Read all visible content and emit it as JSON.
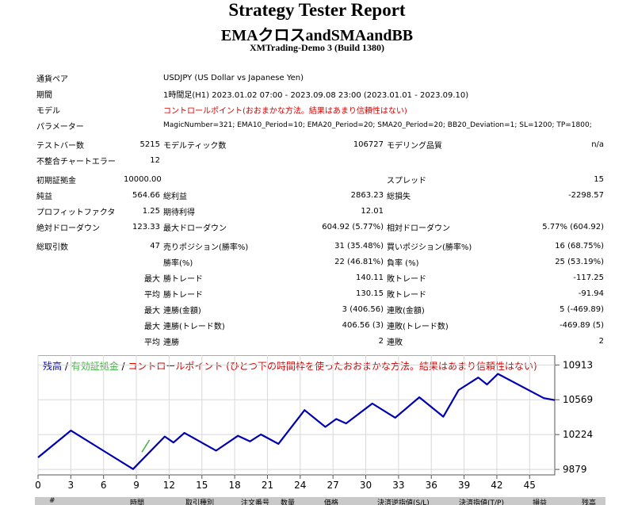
{
  "report": {
    "title": "Strategy Tester Report",
    "expert": "EMAクロスandSMAandBB",
    "server": "XMTrading-Demo 3 (Build 1380)"
  },
  "info": {
    "symbol_label": "通貨ペア",
    "symbol_value": "USDJPY (US Dollar vs Japanese Yen)",
    "period_label": "期間",
    "period_value": "1時間足(H1) 2023.01.02 07:00 - 2023.09.08 23:00 (2023.01.01 - 2023.09.10)",
    "model_label": "モデル",
    "model_value": "コントロールポイント(おおまかな方法。結果はあまり信頼性はない)",
    "params_label": "パラメーター",
    "params_value": "MagicNumber=321; EMA10_Period=10; EMA20_Period=20; SMA20_Period=20; BB20_Deviation=1; SL=1200; TP=1800;"
  },
  "stats": {
    "bars_label": "テストバー数",
    "bars_value": "5215",
    "ticks_label": "モデルティック数",
    "ticks_value": "106727",
    "quality_label": "モデリング品質",
    "quality_value": "n/a",
    "mismatch_label": "不整合チャートエラー",
    "mismatch_value": "12",
    "deposit_label": "初期証拠金",
    "deposit_value": "10000.00",
    "spread_label": "スプレッド",
    "spread_value": "15",
    "net_label": "純益",
    "net_value": "564.66",
    "gross_profit_label": "総利益",
    "gross_profit_value": "2863.23",
    "gross_loss_label": "総損失",
    "gross_loss_value": "-2298.57",
    "pf_label": "プロフィットファクタ",
    "pf_value": "1.25",
    "payoff_label": "期待利得",
    "payoff_value": "12.01",
    "abs_dd_label": "絶対ドローダウン",
    "abs_dd_value": "123.33",
    "max_dd_label": "最大ドローダウン",
    "max_dd_value": "604.92 (5.77%)",
    "rel_dd_label": "相対ドローダウン",
    "rel_dd_value": "5.77% (604.92)",
    "trades_label": "総取引数",
    "trades_value": "47",
    "short_label": "売りポジション(勝率%)",
    "short_value": "31 (35.48%)",
    "long_label": "買いポジション(勝率%)",
    "long_value": "16 (68.75%)",
    "win_pct_label": "勝率(%)",
    "win_pct_value": "22 (46.81%)",
    "loss_pct_label": "負率 (%)",
    "loss_pct_value": "25 (53.19%)",
    "max_word": "最大",
    "avg_word": "平均",
    "largest_win_label": "勝トレード",
    "largest_win_value": "140.11",
    "largest_loss_label": "敗トレード",
    "largest_loss_value": "-117.25",
    "avg_win_label": "勝トレード",
    "avg_win_value": "130.15",
    "avg_loss_label": "敗トレード",
    "avg_loss_value": "-91.94",
    "max_cons_wins_money_label": "連勝(金額)",
    "max_cons_wins_money_value": "3 (406.56)",
    "max_cons_losses_money_label": "連敗(金額)",
    "max_cons_losses_money_value": "5 (-469.89)",
    "max_cons_wins_count_label": "連勝(トレード数)",
    "max_cons_wins_count_value": "406.56 (3)",
    "max_cons_losses_count_label": "連敗(トレード数)",
    "max_cons_losses_count_value": "-469.89 (5)",
    "avg_cons_wins_label": "連勝",
    "avg_cons_wins_value": "2",
    "avg_cons_losses_label": "連敗",
    "avg_cons_losses_value": "2"
  },
  "chart_data": {
    "type": "line",
    "legend": {
      "balance": "残高",
      "sep1": " / ",
      "equity": "有効証拠金",
      "sep2": " / ",
      "note": "コントロールポイント (ひとつ下の時間枠を使ったおおまかな方法。結果はあまり信頼性はない)"
    },
    "x_ticks": [
      0,
      3,
      6,
      9,
      12,
      15,
      18,
      21,
      24,
      27,
      30,
      33,
      36,
      39,
      42,
      45
    ],
    "y_ticks": [
      9879,
      10224,
      10569,
      10913
    ],
    "xlim": [
      0,
      47.3
    ],
    "ylim": [
      9825,
      11010
    ],
    "series": [
      {
        "name": "残高",
        "color": "#0000b0",
        "x": [
          0,
          3,
          8.7,
          11.6,
          12.4,
          13.4,
          16.3,
          18.3,
          19.4,
          20.4,
          22,
          24.4,
          26.3,
          27.3,
          28.2,
          30.6,
          32.7,
          34.9,
          37.1,
          38.5,
          40.3,
          41.1,
          42.1,
          46.3,
          47.3
        ],
        "y": [
          9998,
          10264,
          9882,
          10205,
          10145,
          10240,
          10065,
          10212,
          10156,
          10225,
          10132,
          10466,
          10300,
          10378,
          10334,
          10531,
          10391,
          10593,
          10401,
          10665,
          10789,
          10720,
          10825,
          10585,
          10565
        ]
      },
      {
        "name": "有効証拠金",
        "color": "#3cb43c",
        "x": [
          9.5,
          10.2
        ],
        "y": [
          10050,
          10170
        ]
      }
    ]
  },
  "table_header": [
    "#",
    "時間",
    "取引種別",
    "注文番号",
    "数量",
    "価格",
    "決済逆指値(S/L)",
    "決済指値(T/P)",
    "損益",
    "残高"
  ]
}
